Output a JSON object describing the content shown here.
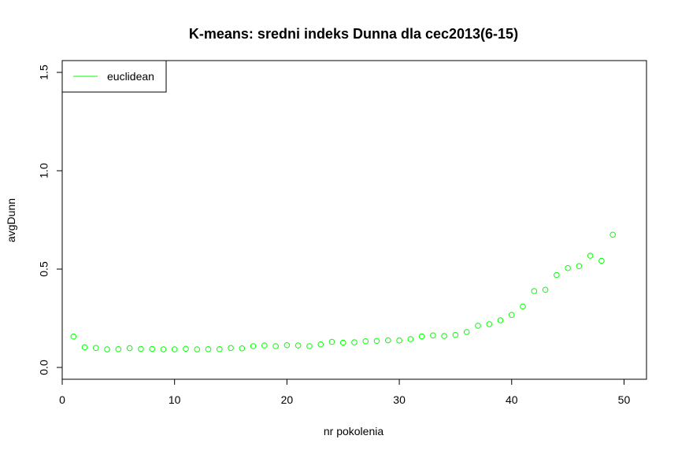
{
  "chart_data": {
    "type": "scatter",
    "title": "K-means: sredni indeks Dunna dla cec2013(6-15)",
    "xlabel": "nr pokolenia",
    "ylabel": "avgDunn",
    "xlim": [
      0,
      52
    ],
    "ylim": [
      -0.06,
      1.56
    ],
    "x_ticks": [
      0,
      10,
      20,
      30,
      40,
      50
    ],
    "x_tick_labels": [
      "0",
      "10",
      "20",
      "30",
      "40",
      "50"
    ],
    "y_ticks": [
      0.0,
      0.5,
      1.0,
      1.5
    ],
    "y_tick_labels": [
      "0.0",
      "0.5",
      "1.0",
      "1.5"
    ],
    "grid": false,
    "legend_position": "top-left",
    "series": [
      {
        "name": "euclidean",
        "color": "#00ff00",
        "marker": "open-circle",
        "x": [
          1,
          2,
          3,
          4,
          5,
          6,
          7,
          8,
          9,
          10,
          11,
          12,
          13,
          14,
          15,
          16,
          17,
          18,
          19,
          20,
          21,
          22,
          23,
          24,
          25,
          26,
          27,
          28,
          29,
          30,
          31,
          32,
          33,
          34,
          35,
          36,
          37,
          38,
          39,
          40,
          41,
          42,
          43,
          44,
          45,
          46,
          47,
          48,
          49
        ],
        "values": [
          0.157,
          0.103,
          0.099,
          0.092,
          0.093,
          0.098,
          0.094,
          0.094,
          0.092,
          0.092,
          0.095,
          0.092,
          0.093,
          0.093,
          0.099,
          0.097,
          0.108,
          0.112,
          0.108,
          0.113,
          0.112,
          0.108,
          0.117,
          0.13,
          0.126,
          0.128,
          0.133,
          0.135,
          0.138,
          0.137,
          0.144,
          0.158,
          0.163,
          0.16,
          0.165,
          0.18,
          0.212,
          0.22,
          0.24,
          0.267,
          0.31,
          0.388,
          0.395,
          0.47,
          0.505,
          0.515,
          0.568,
          0.542,
          0.675
        ]
      }
    ]
  }
}
